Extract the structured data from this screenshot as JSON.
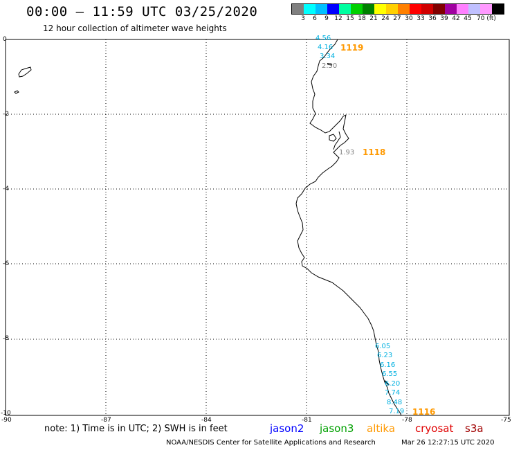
{
  "title": "00:00 – 11:59 UTC 03/25/2020",
  "subtitle": "12 hour collection of altimeter wave heights",
  "scale": {
    "colors": [
      "#808080",
      "#00ffff",
      "#00c0ff",
      "#0000ff",
      "#00ffa0",
      "#00d000",
      "#008000",
      "#ffff00",
      "#ffd000",
      "#ff8000",
      "#ff0000",
      "#d00000",
      "#800000",
      "#a000a0",
      "#ff80ff",
      "#c0c0ff",
      "#ff99ff",
      "#000000"
    ],
    "labels": [
      "3",
      "6",
      "9",
      "12",
      "15",
      "18",
      "21",
      "24",
      "27",
      "30",
      "33",
      "36",
      "39",
      "42",
      "45",
      "70 (ft)"
    ]
  },
  "axes": {
    "lat_ticks": [
      "0",
      "-2",
      "-4",
      "-6",
      "-8",
      "-10"
    ],
    "lon_ticks": [
      "-90",
      "-87",
      "-84",
      "-81",
      "-78",
      "-75"
    ]
  },
  "wave_heights": {
    "pass_1119": [
      "4.56",
      "4.16",
      "3.34",
      "2.50"
    ],
    "pass_1118": [
      "1.93"
    ],
    "pass_1116": [
      "6.05",
      "6.23",
      "6.16",
      "6.55",
      "6.20",
      "7.74",
      "8.48",
      "7.19"
    ]
  },
  "passes": [
    "1119",
    "1118",
    "1116"
  ],
  "note": "note: 1) Time is in UTC; 2) SWH is in feet",
  "legend": [
    {
      "name": "jason2",
      "color": "#0000ff"
    },
    {
      "name": "jason3",
      "color": "#00a000"
    },
    {
      "name": "altika",
      "color": "#ff9900"
    },
    {
      "name": "cryosat",
      "color": "#e00000"
    },
    {
      "name": "s3a",
      "color": "#a00000"
    }
  ],
  "credit": "NOAA/NESDIS Center for Satellite Applications and Research",
  "timestamp": "Mar 26 12:27:15 UTC 2020",
  "label_colors": {
    "wave": "#00b0e0",
    "wave_low": "#808080",
    "pass": "#ff9900"
  }
}
